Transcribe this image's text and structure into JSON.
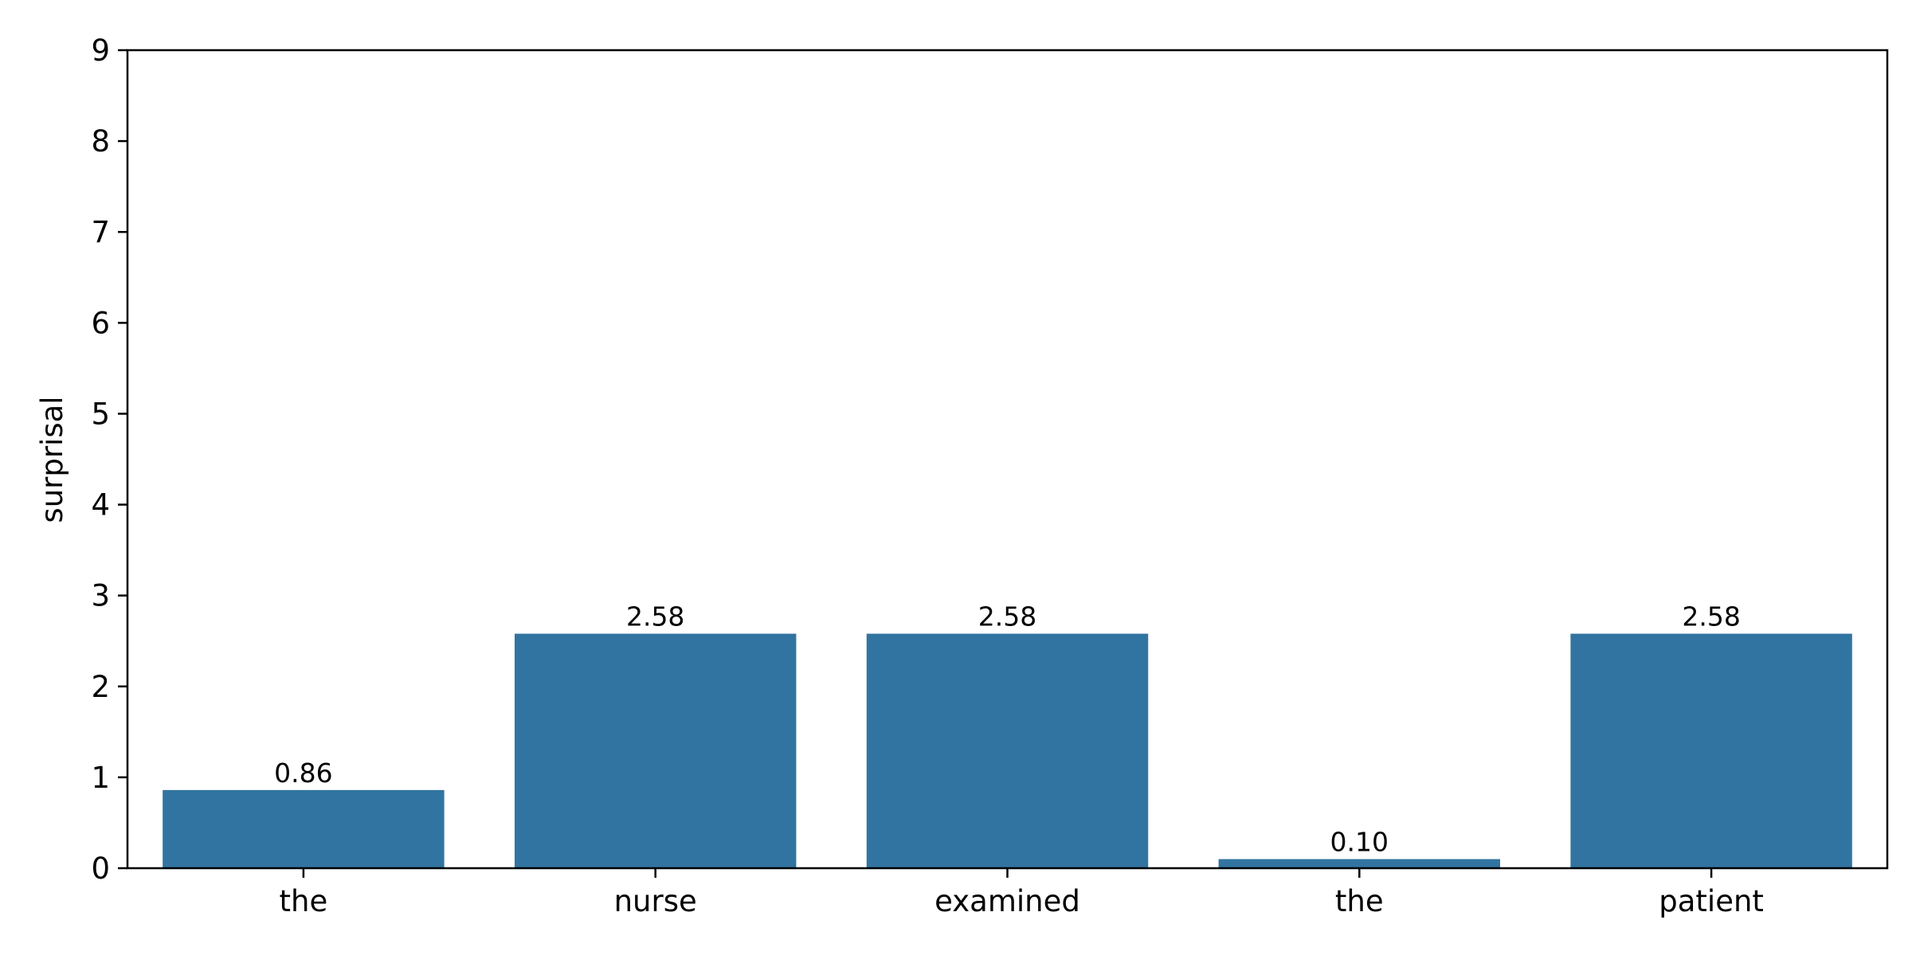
{
  "chart_data": {
    "type": "bar",
    "categories": [
      "the",
      "nurse",
      "examined",
      "the",
      "patient"
    ],
    "values": [
      0.86,
      2.58,
      2.58,
      0.1,
      2.58
    ],
    "data_labels": [
      "0.86",
      "2.58",
      "2.58",
      "0.10",
      "2.58"
    ],
    "ylabel": "surprisal",
    "xlabel": "",
    "ylim": [
      0,
      9
    ],
    "yticks": [
      0,
      1,
      2,
      3,
      4,
      5,
      6,
      7,
      8,
      9
    ],
    "ytick_labels": [
      "0",
      "1",
      "2",
      "3",
      "4",
      "5",
      "6",
      "7",
      "8",
      "9"
    ],
    "grid": false,
    "legend": "none",
    "bar_color": "#3274a1"
  }
}
